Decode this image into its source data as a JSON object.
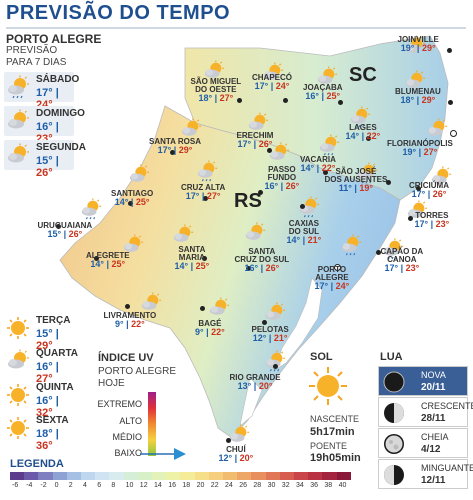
{
  "title": "PREVISÃO DO TEMPO",
  "location": {
    "name": "PORTO ALEGRE",
    "line1": "PREVISÃO",
    "line2": "PARA 7 DIAS"
  },
  "days_top": [
    {
      "name": "SÁBADO",
      "min": "17°",
      "max": "24°",
      "icon": "sun-cloud-rain-icon"
    },
    {
      "name": "DOMINGO",
      "min": "16°",
      "max": "23°",
      "icon": "sun-cloud-icon"
    },
    {
      "name": "SEGUNDA",
      "min": "15°",
      "max": "26°",
      "icon": "sun-cloud-icon"
    }
  ],
  "days_bottom": [
    {
      "name": "TERÇA",
      "min": "15°",
      "max": "29°",
      "icon": "sun-icon"
    },
    {
      "name": "QUARTA",
      "min": "16°",
      "max": "27°",
      "icon": "sun-cloud-icon"
    },
    {
      "name": "QUINTA",
      "min": "16°",
      "max": "32°",
      "icon": "sun-icon"
    },
    {
      "name": "SEXTA",
      "min": "18°",
      "max": "36°",
      "icon": "sun-icon"
    }
  ],
  "states": {
    "rs": "RS",
    "sc": "SC"
  },
  "cities": [
    {
      "name": "JOINVILLE",
      "min": "19°",
      "max": "29°"
    },
    {
      "name": "CHAPECÓ",
      "min": "17°",
      "max": "24°"
    },
    {
      "name": "SÃO MIGUEL|DO OESTE",
      "min": "18°",
      "max": "27°"
    },
    {
      "name": "JOAÇABA",
      "min": "16°",
      "max": "25°"
    },
    {
      "name": "BLUMENAU",
      "min": "18°",
      "max": "29°"
    },
    {
      "name": "LAGES",
      "min": "14°",
      "max": "22°"
    },
    {
      "name": "FLORIANÓPOLIS",
      "min": "19°",
      "max": "27°"
    },
    {
      "name": "SANTA ROSA",
      "min": "17°",
      "max": "29°"
    },
    {
      "name": "ERECHIM",
      "min": "17°",
      "max": "26°"
    },
    {
      "name": "VACARIA",
      "min": "14°",
      "max": "22°"
    },
    {
      "name": "PASSO|FUNDO",
      "min": "16°",
      "max": "26°"
    },
    {
      "name": "CRUZ ALTA",
      "min": "17°",
      "max": "27°"
    },
    {
      "name": "SANTIAGO",
      "min": "14°",
      "max": "25°"
    },
    {
      "name": "SÃO JOSÉ|DOS AUSENTES",
      "min": "11°",
      "max": "19°"
    },
    {
      "name": "CRICIÚMA",
      "min": "17°",
      "max": "26°"
    },
    {
      "name": "TORRES",
      "min": "17°",
      "max": "23°"
    },
    {
      "name": "URUGUAIANA",
      "min": "15°",
      "max": "26°"
    },
    {
      "name": "CAXIAS|DO SUL",
      "min": "14°",
      "max": "21°"
    },
    {
      "name": "CAPÃO DA|CANOA",
      "min": "17°",
      "max": "23°"
    },
    {
      "name": "ALEGRETE",
      "min": "14°",
      "max": "25°"
    },
    {
      "name": "SANTA|MARIA",
      "min": "14°",
      "max": "25°"
    },
    {
      "name": "SANTA|CRUZ DO SUL",
      "min": "16°",
      "max": "26°"
    },
    {
      "name": "PORTO|ALEGRE",
      "min": "17°",
      "max": "24°"
    },
    {
      "name": "LIVRAMENTO",
      "min": "9°",
      "max": "22°"
    },
    {
      "name": "BAGÉ",
      "min": "9°",
      "max": "22°"
    },
    {
      "name": "PELOTAS",
      "min": "12°",
      "max": "21°"
    },
    {
      "name": "RIO GRANDE",
      "min": "13°",
      "max": "20°"
    },
    {
      "name": "CHUÍ",
      "min": "12°",
      "max": "20°"
    }
  ],
  "uv": {
    "title": "ÍNDICE UV",
    "line1": "PORTO ALEGRE",
    "line2": "HOJE",
    "levels": [
      "EXTREMO",
      "ALTO",
      "MÉDIO",
      "BAIXO"
    ],
    "current": "BAIXO"
  },
  "sun": {
    "title": "SOL",
    "rise_label": "NASCENTE",
    "rise_time": "5h17min",
    "set_label": "POENTE",
    "set_time": "19h05min"
  },
  "moon": {
    "title": "LUA",
    "phases": [
      {
        "name": "NOVA",
        "date": "20/11",
        "icon": "new-moon-icon",
        "active": true
      },
      {
        "name": "CRESCENTE",
        "date": "28/11",
        "icon": "first-quarter-moon-icon",
        "active": false
      },
      {
        "name": "CHEIA",
        "date": "4/12",
        "icon": "full-moon-icon",
        "active": false
      },
      {
        "name": "MINGUANTE",
        "date": "12/11",
        "icon": "last-quarter-moon-icon",
        "active": false
      }
    ]
  },
  "legend": {
    "title": "LEGENDA",
    "ticks": [
      "-6",
      "-4",
      "-2",
      "0",
      "2",
      "4",
      "6",
      "8",
      "10",
      "12",
      "14",
      "16",
      "18",
      "20",
      "22",
      "24",
      "26",
      "28",
      "30",
      "32",
      "34",
      "36",
      "38",
      "40"
    ],
    "colors": [
      "#5b3b8c",
      "#6a5aa8",
      "#7d7fc0",
      "#8fa2d4",
      "#a5c0e4",
      "#bed6ee",
      "#cfe3f2",
      "#d8ecef",
      "#d5eed8",
      "#d8f0c8",
      "#e3f2b8",
      "#eef2a8",
      "#f4ec98",
      "#f6df8a",
      "#f5cf7c",
      "#f2bc70",
      "#eea666",
      "#e88f5e",
      "#e07656",
      "#d65d50",
      "#c9454a",
      "#b83244",
      "#a2243e",
      "#8a1838"
    ]
  },
  "colors": {
    "title_blue": "#1f4f8f",
    "min_temp": "#1f5fa8",
    "max_temp": "#c8341f",
    "sea": "#ffffff",
    "moon_active_bg": "#3a5f96"
  }
}
